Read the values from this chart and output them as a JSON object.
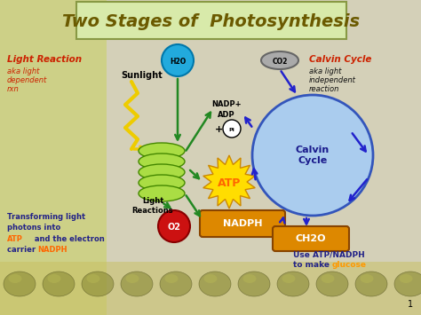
{
  "title": "Two Stages of  Photosynthesis",
  "title_color": "#6b5a00",
  "title_box_facecolor": "#d8eaaa",
  "title_box_edgecolor": "#889944",
  "bg_left_color": "#c8d060",
  "bg_right_color": "#d8d0b8",
  "bg_mid_color": "#e8e8d8",
  "left_reaction_label": "Light Reaction",
  "left_reaction_color": "#cc2200",
  "left_aka": "aka light\ndependent\nrxn",
  "left_aka_color": "#cc2200",
  "sunlight_label": "Sunlight",
  "right_cycle_label": "Calvin Cycle",
  "right_cycle_color": "#cc2200",
  "right_aka": "aka light\nindependent\nreaction",
  "right_aka_color": "#1a1a1a",
  "h2o_color": "#22aadd",
  "co2_color": "#aaaaaa",
  "o2_color": "#cc1111",
  "atp_burst_color": "#ffcc00",
  "atp_text_color": "#cc6600",
  "nadph_box_color": "#dd8800",
  "ch2o_box_color": "#dd8800",
  "calvin_circle_color": "#88bbdd",
  "thylakoid_color": "#99cc44",
  "arrow_green": "#228822",
  "arrow_blue": "#2222cc",
  "atp_highlight": "#ff6600",
  "nadph_highlight": "#ff6600",
  "glucose_highlight": "#ff9900",
  "bottom_text_color": "#222288",
  "slide_number": "1"
}
